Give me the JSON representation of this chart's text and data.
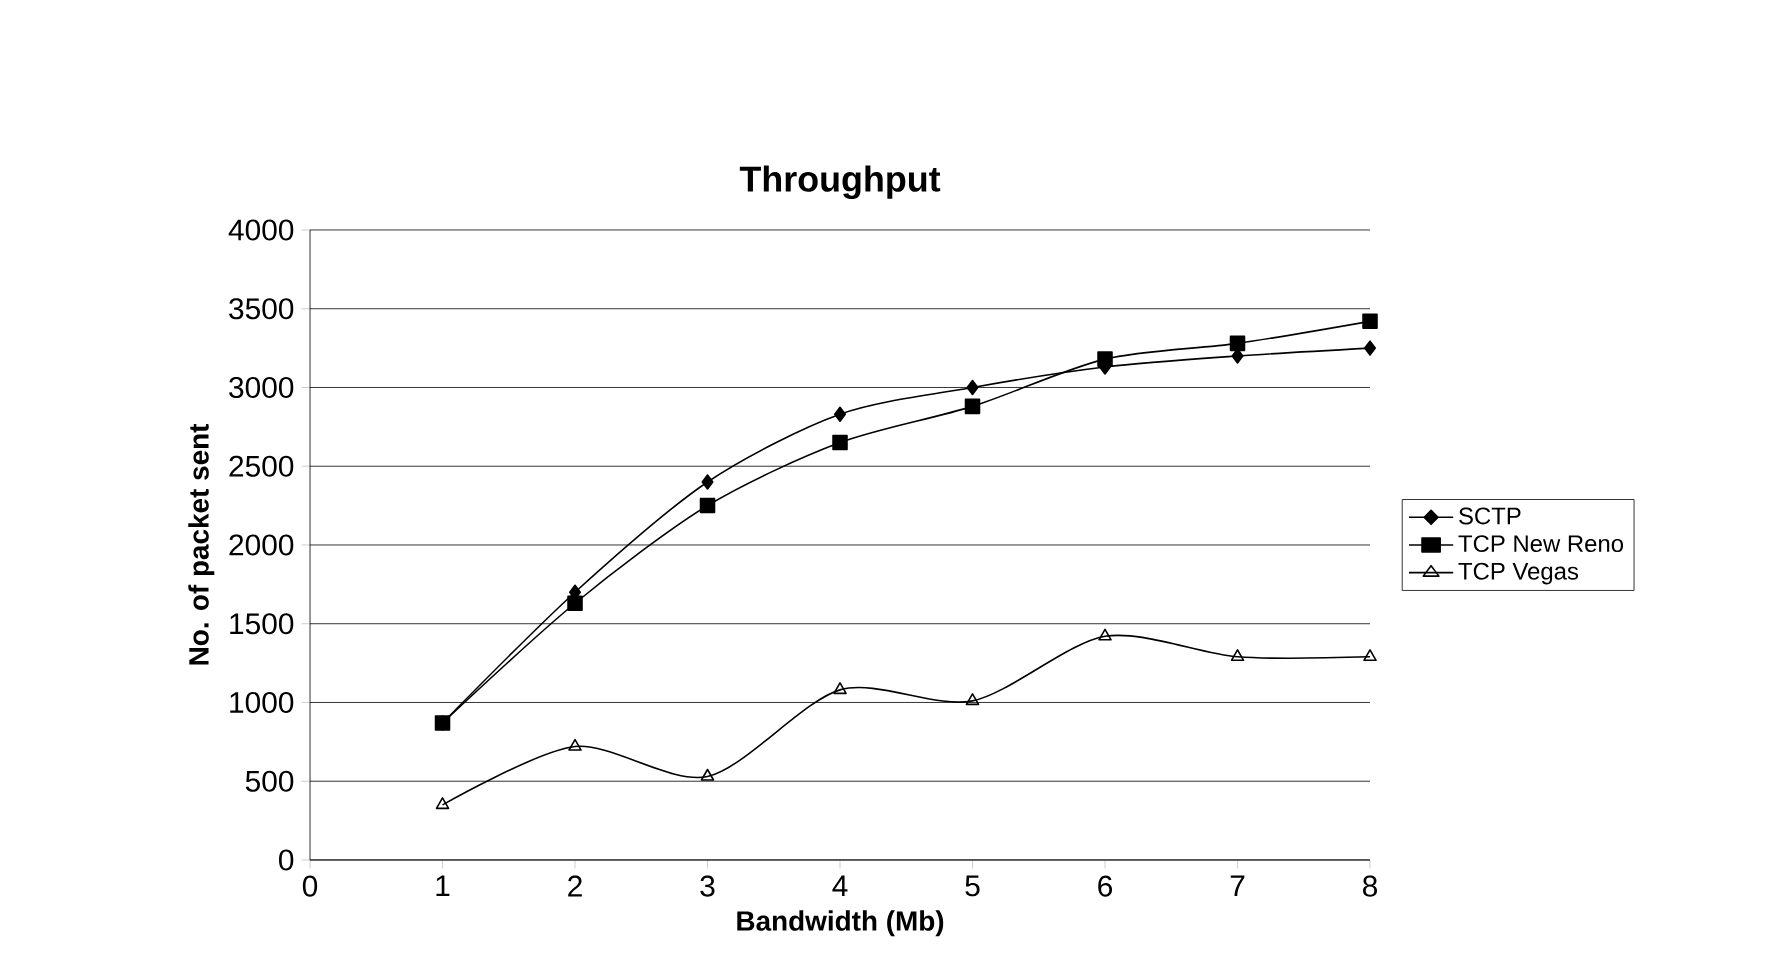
{
  "chart_data": {
    "type": "line",
    "title": "Throughput",
    "xlabel": "Bandwidth (Mb)",
    "ylabel": "No. of packet sent",
    "x": [
      1,
      2,
      3,
      4,
      5,
      6,
      7,
      8
    ],
    "series": [
      {
        "name": "SCTP",
        "color": "#000000",
        "marker": "diamond",
        "values": [
          870,
          1700,
          2400,
          2830,
          3000,
          3130,
          3200,
          3250
        ]
      },
      {
        "name": "TCP New  Reno",
        "color": "#000000",
        "marker": "square",
        "values": [
          870,
          1630,
          2250,
          2650,
          2880,
          3180,
          3280,
          3420
        ]
      },
      {
        "name": "TCP Vegas",
        "color": "#000000",
        "marker": "triangle",
        "values": [
          350,
          720,
          530,
          1080,
          1010,
          1420,
          1290,
          1290
        ]
      }
    ],
    "xlim": [
      0,
      8
    ],
    "xticks": [
      0,
      1,
      2,
      3,
      4,
      5,
      6,
      7,
      8
    ],
    "ylim": [
      0,
      4000
    ],
    "yticks": [
      0,
      500,
      1000,
      1500,
      2000,
      2500,
      3000,
      3500,
      4000
    ],
    "grid": "y",
    "legend": "right",
    "line_style": "solid"
  }
}
